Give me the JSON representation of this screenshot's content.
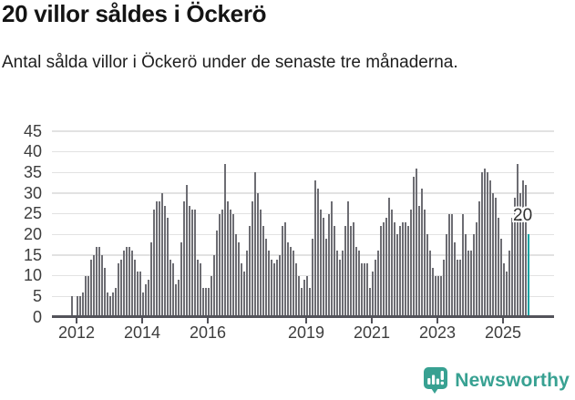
{
  "header": {
    "title": "20 villor såldes i Öckerö",
    "subtitle": "Antal sålda villor i Öckerö under de senaste tre månaderna."
  },
  "chart_data": {
    "type": "bar",
    "title": "20 villor såldes i Öckerö",
    "frequency": "monthly",
    "start_month": "2011-11",
    "values": [
      5,
      0,
      5,
      5,
      6,
      10,
      10,
      14,
      15,
      17,
      17,
      15,
      12,
      6,
      5,
      6,
      7,
      13,
      14,
      16,
      17,
      17,
      16,
      14,
      11,
      11,
      6,
      8,
      9,
      18,
      26,
      28,
      28,
      30,
      27,
      24,
      14,
      13,
      8,
      9,
      18,
      28,
      32,
      27,
      26,
      26,
      14,
      13,
      7,
      7,
      7,
      10,
      15,
      21,
      25,
      26,
      37,
      28,
      26,
      25,
      20,
      18,
      13,
      11,
      16,
      22,
      28,
      35,
      30,
      26,
      22,
      19,
      16,
      14,
      13,
      14,
      15,
      22,
      23,
      18,
      17,
      16,
      13,
      10,
      7,
      9,
      10,
      7,
      19,
      33,
      31,
      26,
      24,
      19,
      25,
      28,
      22,
      16,
      14,
      16,
      22,
      28,
      22,
      23,
      17,
      16,
      13,
      13,
      13,
      7,
      11,
      14,
      16,
      22,
      23,
      24,
      29,
      26,
      23,
      20,
      22,
      23,
      23,
      22,
      26,
      34,
      36,
      27,
      31,
      26,
      20,
      16,
      12,
      10,
      10,
      10,
      14,
      20,
      25,
      25,
      18,
      14,
      14,
      25,
      20,
      16,
      16,
      20,
      23,
      28,
      35,
      36,
      35,
      33,
      30,
      29,
      24,
      19,
      13,
      11,
      16,
      24,
      29,
      37,
      30,
      33,
      32,
      20
    ],
    "highlight_index": 167,
    "highlight_value": 20,
    "annotation_label": "20",
    "x_tick_years": [
      2012,
      2014,
      2016,
      2019,
      2021,
      2023,
      2025
    ],
    "y_ticks": [
      0,
      5,
      10,
      15,
      20,
      25,
      30,
      35,
      40,
      45
    ],
    "ylim": [
      0,
      45
    ],
    "grid": "horizontal",
    "legend": "none",
    "bar_color": "#6d6d73",
    "highlight_color": "#0fa3a3",
    "axis_color": "#53535a",
    "gridline_color": "#e2e2e2"
  },
  "footer": {
    "brand": "Newsworthy",
    "brand_color": "#38a192",
    "logo_icon": "newsworthy-speech-bubble-chart-icon"
  }
}
